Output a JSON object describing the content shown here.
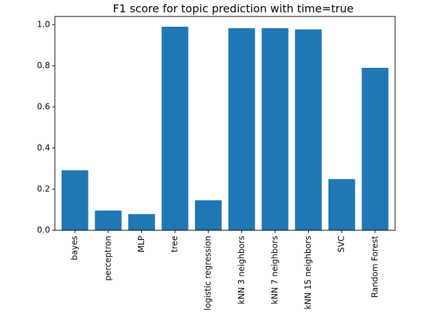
{
  "chart_data": {
    "type": "bar",
    "title": "F1 score for topic prediction with time=true",
    "xlabel": "",
    "ylabel": "",
    "categories": [
      "bayes",
      "perceptron",
      "MLP",
      "tree",
      "logistic regression",
      "kNN 3 neighbors",
      "kNN 7 neighbors",
      "kNN 15 neighbors",
      "SVC",
      "Random Forest"
    ],
    "values": [
      0.292,
      0.096,
      0.079,
      0.99,
      0.146,
      0.983,
      0.983,
      0.977,
      0.249,
      0.79
    ],
    "ylim": [
      0,
      1.04
    ],
    "yticks": [
      0.0,
      0.2,
      0.4,
      0.6,
      0.8,
      1.0
    ],
    "ytick_labels": [
      "0.0",
      "0.2",
      "0.4",
      "0.6",
      "0.8",
      "1.0"
    ],
    "bar_color": "#1f77b4",
    "grid": false,
    "legend": "none"
  }
}
